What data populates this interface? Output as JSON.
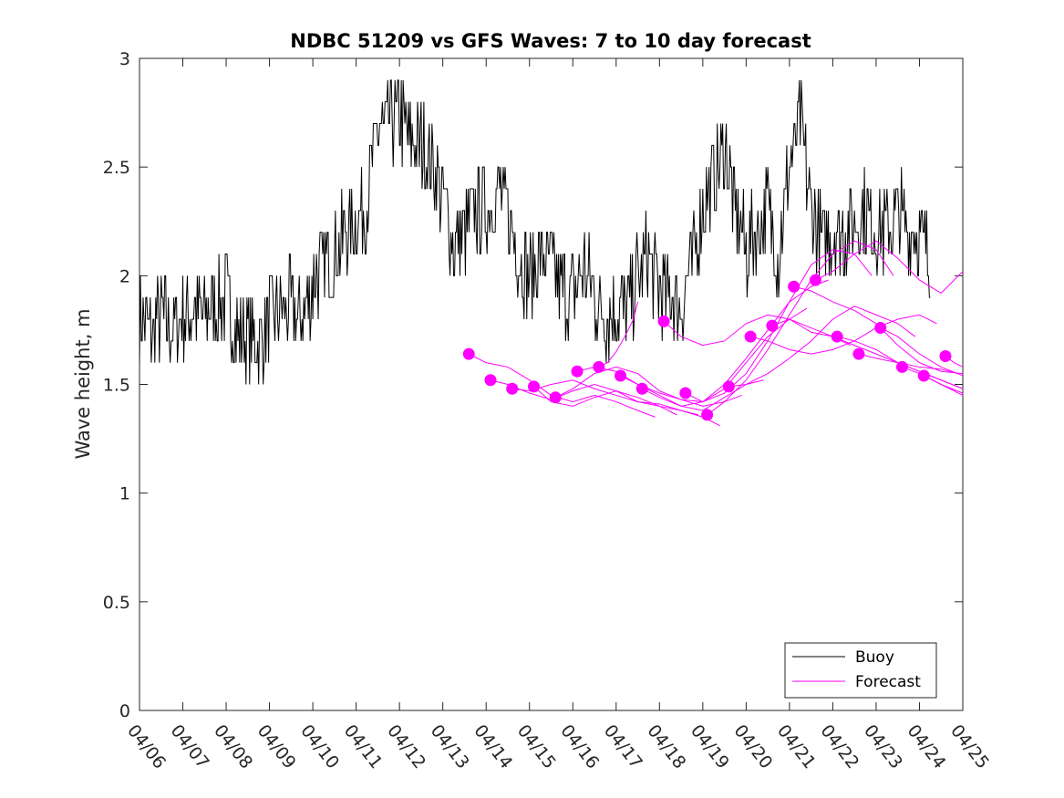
{
  "chart_data": {
    "type": "line",
    "title": "NDBC 51209 vs GFS Waves: 7 to 10 day forecast",
    "xlabel": "",
    "ylabel": "Wave height, m",
    "x_tick_labels": [
      "04/06",
      "04/07",
      "04/08",
      "04/09",
      "04/10",
      "04/11",
      "04/12",
      "04/13",
      "04/14",
      "04/15",
      "04/16",
      "04/17",
      "04/18",
      "04/19",
      "04/20",
      "04/21",
      "04/22",
      "04/23",
      "04/24",
      "04/25"
    ],
    "xlim": [
      0,
      19
    ],
    "ylim": [
      0,
      3
    ],
    "y_ticks": [
      0,
      0.5,
      1,
      1.5,
      2,
      2.5,
      3
    ],
    "y_tick_labels": [
      "0",
      "0.5",
      "1",
      "1.5",
      "2",
      "2.5",
      "3"
    ],
    "grid": false,
    "legend_position": "bottom-right",
    "colors": {
      "buoy": "#000000",
      "forecast": "#ff00ff"
    },
    "series": [
      {
        "name": "Buoy",
        "x": [
          0,
          0.25,
          0.5,
          0.75,
          1,
          1.25,
          1.5,
          1.75,
          2,
          2.25,
          2.5,
          2.75,
          3,
          3.25,
          3.5,
          3.75,
          4,
          4.25,
          4.5,
          4.75,
          5,
          5.25,
          5.5,
          5.75,
          6,
          6.25,
          6.5,
          6.75,
          7,
          7.25,
          7.5,
          7.75,
          8,
          8.25,
          8.5,
          8.75,
          9,
          9.25,
          9.5,
          9.75,
          10,
          10.25,
          10.5,
          10.75,
          11,
          11.25,
          11.5,
          11.75,
          12,
          12.25,
          12.5,
          12.75,
          13,
          13.25,
          13.5,
          13.75,
          14,
          14.25,
          14.5,
          14.75,
          15,
          15.25,
          15.5,
          15.75,
          16,
          16.25,
          16.5,
          16.75,
          17,
          17.25,
          17.5,
          17.75,
          18,
          18.25
        ],
        "values": [
          1.8,
          1.75,
          1.8,
          1.75,
          1.8,
          1.85,
          1.8,
          1.85,
          1.9,
          1.75,
          1.7,
          1.7,
          1.8,
          1.85,
          1.85,
          1.8,
          1.95,
          2.05,
          2.1,
          2.2,
          2.25,
          2.35,
          2.65,
          2.7,
          2.75,
          2.6,
          2.6,
          2.55,
          2.35,
          2.15,
          2.2,
          2.3,
          2.3,
          2.4,
          2.3,
          2.1,
          2.0,
          2.1,
          2.05,
          1.95,
          1.9,
          2.05,
          1.9,
          1.8,
          1.85,
          1.85,
          2.0,
          2.1,
          1.95,
          1.9,
          1.85,
          2.05,
          2.3,
          2.45,
          2.6,
          2.3,
          2.1,
          2.2,
          2.3,
          2.1,
          2.5,
          2.7,
          2.3,
          2.15,
          2.2,
          2.2,
          2.25,
          2.3,
          2.2,
          2.2,
          2.3,
          2.2,
          2.2,
          2.05
        ]
      },
      {
        "name": "Forecast",
        "markers": [
          {
            "x": 7.6,
            "y": 1.64
          },
          {
            "x": 8.1,
            "y": 1.52
          },
          {
            "x": 8.6,
            "y": 1.48
          },
          {
            "x": 9.1,
            "y": 1.49
          },
          {
            "x": 9.6,
            "y": 1.44
          },
          {
            "x": 10.1,
            "y": 1.56
          },
          {
            "x": 10.6,
            "y": 1.58
          },
          {
            "x": 11.1,
            "y": 1.54
          },
          {
            "x": 11.6,
            "y": 1.48
          },
          {
            "x": 12.1,
            "y": 1.79
          },
          {
            "x": 12.6,
            "y": 1.46
          },
          {
            "x": 13.1,
            "y": 1.36
          },
          {
            "x": 13.6,
            "y": 1.49
          },
          {
            "x": 14.1,
            "y": 1.72
          },
          {
            "x": 14.6,
            "y": 1.77
          },
          {
            "x": 15.1,
            "y": 1.95
          },
          {
            "x": 15.6,
            "y": 1.98
          },
          {
            "x": 16.1,
            "y": 1.72
          },
          {
            "x": 16.6,
            "y": 1.64
          },
          {
            "x": 17.1,
            "y": 1.76
          },
          {
            "x": 17.6,
            "y": 1.58
          },
          {
            "x": 18.1,
            "y": 1.54
          },
          {
            "x": 18.6,
            "y": 1.63
          }
        ],
        "traces": [
          {
            "x": [
              7.6,
              8.0,
              8.5,
              9.0,
              9.5,
              10.0,
              10.5,
              11.0,
              11.5,
              11.9
            ],
            "y": [
              1.64,
              1.6,
              1.58,
              1.52,
              1.45,
              1.42,
              1.45,
              1.42,
              1.38,
              1.35
            ]
          },
          {
            "x": [
              8.1,
              8.5,
              9.0,
              9.5,
              10.0,
              10.5,
              11.0,
              11.5,
              12.0,
              12.4
            ],
            "y": [
              1.52,
              1.5,
              1.46,
              1.43,
              1.47,
              1.5,
              1.47,
              1.42,
              1.4,
              1.36
            ]
          },
          {
            "x": [
              8.6,
              9.0,
              9.5,
              10.0,
              10.5,
              11.0,
              11.5,
              12.0,
              12.5,
              12.9
            ],
            "y": [
              1.48,
              1.47,
              1.5,
              1.52,
              1.48,
              1.45,
              1.42,
              1.41,
              1.38,
              1.36
            ]
          },
          {
            "x": [
              9.1,
              9.5,
              10.0,
              10.5,
              11.0,
              11.5,
              12.0,
              12.5,
              13.0,
              13.4
            ],
            "y": [
              1.49,
              1.42,
              1.4,
              1.44,
              1.47,
              1.44,
              1.4,
              1.38,
              1.35,
              1.31
            ]
          },
          {
            "x": [
              9.6,
              10.0,
              10.5,
              11.0,
              11.5,
              12.0,
              12.5,
              13.0,
              13.5,
              13.9
            ],
            "y": [
              1.44,
              1.48,
              1.55,
              1.58,
              1.55,
              1.47,
              1.43,
              1.4,
              1.42,
              1.45
            ]
          },
          {
            "x": [
              10.1,
              10.5,
              11.0,
              11.5,
              12.0,
              12.5,
              13.0,
              13.5,
              14.0,
              14.4
            ],
            "y": [
              1.56,
              1.58,
              1.56,
              1.5,
              1.45,
              1.4,
              1.38,
              1.44,
              1.5,
              1.52
            ]
          },
          {
            "x": [
              10.6,
              10.8,
              11.0,
              11.2,
              11.4,
              11.5
            ],
            "y": [
              1.58,
              1.6,
              1.65,
              1.72,
              1.8,
              1.88
            ]
          },
          {
            "x": [
              11.1,
              11.5,
              12.0,
              12.5,
              13.0,
              13.5,
              14.0,
              14.5,
              15.0,
              15.4
            ],
            "y": [
              1.54,
              1.5,
              1.46,
              1.43,
              1.42,
              1.48,
              1.6,
              1.72,
              1.8,
              1.85
            ]
          },
          {
            "x": [
              11.6,
              12.0,
              12.5,
              13.0,
              13.5,
              14.0,
              14.5,
              15.0,
              15.5,
              15.9
            ],
            "y": [
              1.48,
              1.44,
              1.4,
              1.42,
              1.5,
              1.62,
              1.75,
              1.88,
              1.95,
              1.98
            ]
          },
          {
            "x": [
              12.1,
              12.5,
              13.0,
              13.5,
              14.0,
              14.5,
              15.0,
              15.5,
              16.0,
              16.4
            ],
            "y": [
              1.79,
              1.72,
              1.68,
              1.7,
              1.78,
              1.82,
              1.8,
              1.76,
              1.72,
              1.68
            ]
          },
          {
            "x": [
              12.6,
              13.0,
              13.5,
              14.0,
              14.5,
              15.0,
              15.5,
              16.0,
              16.5,
              16.9
            ],
            "y": [
              1.46,
              1.42,
              1.46,
              1.55,
              1.7,
              1.88,
              2.05,
              2.12,
              2.1,
              2.0
            ]
          },
          {
            "x": [
              13.1,
              13.5,
              14.0,
              14.5,
              15.0,
              15.5,
              16.0,
              16.5,
              17.0,
              17.4
            ],
            "y": [
              1.36,
              1.42,
              1.52,
              1.66,
              1.82,
              1.98,
              2.1,
              2.16,
              2.12,
              2.0
            ]
          },
          {
            "x": [
              13.6,
              14.0,
              14.5,
              15.0,
              15.5,
              16.0,
              16.5,
              17.0,
              17.5,
              17.9
            ],
            "y": [
              1.49,
              1.5,
              1.55,
              1.62,
              1.7,
              1.8,
              1.86,
              1.82,
              1.78,
              1.72
            ]
          },
          {
            "x": [
              14.1,
              14.5,
              15.0,
              15.5,
              16.0,
              16.5,
              17.0,
              17.5,
              18.0,
              18.4
            ],
            "y": [
              1.72,
              1.7,
              1.66,
              1.64,
              1.66,
              1.7,
              1.76,
              1.8,
              1.82,
              1.78
            ]
          },
          {
            "x": [
              14.6,
              15.0,
              15.5,
              16.0,
              16.5,
              17.0,
              17.5,
              18.0,
              18.5,
              18.9
            ],
            "y": [
              1.77,
              1.8,
              1.74,
              1.72,
              1.68,
              1.64,
              1.6,
              1.58,
              1.57,
              1.55
            ]
          },
          {
            "x": [
              15.1,
              15.5,
              16.0,
              16.5,
              17.0,
              17.5,
              18.0,
              18.5,
              19.0
            ],
            "y": [
              1.95,
              1.93,
              1.88,
              1.84,
              1.78,
              1.68,
              1.6,
              1.56,
              1.55
            ]
          },
          {
            "x": [
              15.6,
              16.0,
              16.5,
              17.0,
              17.5,
              18.0,
              18.5,
              19.0
            ],
            "y": [
              1.98,
              2.02,
              2.1,
              2.16,
              2.08,
              1.98,
              1.92,
              2.02
            ]
          },
          {
            "x": [
              16.1,
              16.5,
              17.0,
              17.5,
              18.0,
              18.5,
              19.0
            ],
            "y": [
              1.72,
              1.7,
              1.66,
              1.6,
              1.56,
              1.52,
              1.48
            ]
          },
          {
            "x": [
              16.6,
              17.0,
              17.5,
              18.0,
              18.5,
              19.0
            ],
            "y": [
              1.64,
              1.62,
              1.6,
              1.56,
              1.52,
              1.48
            ]
          },
          {
            "x": [
              17.1,
              17.5,
              18.0,
              18.5,
              19.0
            ],
            "y": [
              1.76,
              1.72,
              1.64,
              1.58,
              1.54
            ]
          },
          {
            "x": [
              17.6,
              18.0,
              18.5,
              19.0
            ],
            "y": [
              1.58,
              1.55,
              1.5,
              1.46
            ]
          },
          {
            "x": [
              18.1,
              18.5,
              19.0
            ],
            "y": [
              1.54,
              1.5,
              1.45
            ]
          },
          {
            "x": [
              18.6,
              18.8,
              19.0
            ],
            "y": [
              1.63,
              1.6,
              1.58
            ]
          }
        ]
      }
    ]
  }
}
